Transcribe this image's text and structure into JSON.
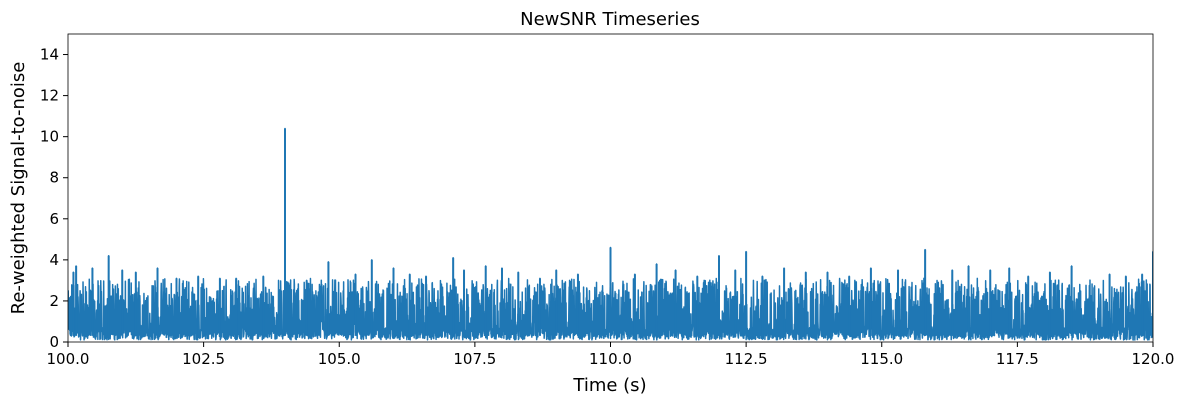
{
  "chart_data": {
    "type": "line",
    "title": "NewSNR Timeseries",
    "xlabel": "Time (s)",
    "ylabel": "Re-weighted Signal-to-noise",
    "xlim": [
      100.0,
      120.0
    ],
    "ylim": [
      0,
      15
    ],
    "grid": false,
    "legend": "none",
    "x_ticks": [
      "100.0",
      "102.5",
      "105.0",
      "107.5",
      "110.0",
      "112.5",
      "115.0",
      "117.5",
      "120.0"
    ],
    "y_ticks": [
      "0",
      "2",
      "4",
      "6",
      "8",
      "10",
      "12",
      "14"
    ],
    "series": [
      {
        "color": "#1f77b4",
        "baseline_range": [
          0.3,
          2.5
        ],
        "notable_peaks": [
          {
            "x": 100.1,
            "y": 3.4
          },
          {
            "x": 100.15,
            "y": 3.7
          },
          {
            "x": 100.45,
            "y": 3.6
          },
          {
            "x": 100.75,
            "y": 4.2
          },
          {
            "x": 101.0,
            "y": 3.5
          },
          {
            "x": 101.25,
            "y": 3.4
          },
          {
            "x": 101.65,
            "y": 3.6
          },
          {
            "x": 102.0,
            "y": 3.1
          },
          {
            "x": 102.4,
            "y": 3.2
          },
          {
            "x": 102.8,
            "y": 3.1
          },
          {
            "x": 103.1,
            "y": 3.1
          },
          {
            "x": 103.6,
            "y": 3.2
          },
          {
            "x": 104.0,
            "y": 10.4
          },
          {
            "x": 104.4,
            "y": 3.0
          },
          {
            "x": 104.8,
            "y": 3.9
          },
          {
            "x": 105.3,
            "y": 3.3
          },
          {
            "x": 105.6,
            "y": 4.0
          },
          {
            "x": 106.0,
            "y": 3.6
          },
          {
            "x": 106.3,
            "y": 3.3
          },
          {
            "x": 106.6,
            "y": 3.2
          },
          {
            "x": 107.1,
            "y": 4.1
          },
          {
            "x": 107.3,
            "y": 3.5
          },
          {
            "x": 107.7,
            "y": 3.7
          },
          {
            "x": 108.0,
            "y": 3.6
          },
          {
            "x": 108.3,
            "y": 3.4
          },
          {
            "x": 108.7,
            "y": 3.1
          },
          {
            "x": 109.0,
            "y": 3.5
          },
          {
            "x": 109.4,
            "y": 3.3
          },
          {
            "x": 110.0,
            "y": 4.6
          },
          {
            "x": 110.45,
            "y": 3.3
          },
          {
            "x": 110.85,
            "y": 3.8
          },
          {
            "x": 111.2,
            "y": 3.5
          },
          {
            "x": 111.6,
            "y": 3.2
          },
          {
            "x": 112.0,
            "y": 4.2
          },
          {
            "x": 112.3,
            "y": 3.5
          },
          {
            "x": 112.5,
            "y": 4.4
          },
          {
            "x": 112.8,
            "y": 3.2
          },
          {
            "x": 113.2,
            "y": 3.6
          },
          {
            "x": 113.6,
            "y": 3.4
          },
          {
            "x": 114.0,
            "y": 3.4
          },
          {
            "x": 114.4,
            "y": 3.2
          },
          {
            "x": 114.8,
            "y": 3.6
          },
          {
            "x": 115.3,
            "y": 3.5
          },
          {
            "x": 115.8,
            "y": 4.5
          },
          {
            "x": 116.3,
            "y": 3.5
          },
          {
            "x": 116.6,
            "y": 3.7
          },
          {
            "x": 117.0,
            "y": 3.5
          },
          {
            "x": 117.35,
            "y": 3.6
          },
          {
            "x": 117.7,
            "y": 3.2
          },
          {
            "x": 118.1,
            "y": 3.4
          },
          {
            "x": 118.5,
            "y": 3.7
          },
          {
            "x": 119.2,
            "y": 3.3
          },
          {
            "x": 119.5,
            "y": 3.2
          },
          {
            "x": 119.8,
            "y": 3.3
          },
          {
            "x": 120.0,
            "y": 4.4
          }
        ]
      }
    ]
  }
}
